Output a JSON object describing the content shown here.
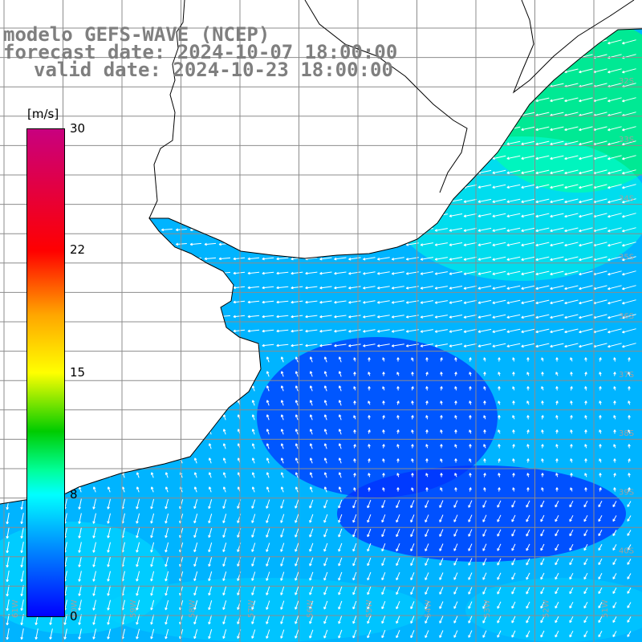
{
  "title": {
    "line1": "modelo GEFS-WAVE (NCEP)",
    "line2": "forecast date: 2024-10-07 18:00:00",
    "line3": "valid date: 2024-10-23 18:00:00"
  },
  "colorbar": {
    "unit": "[m/s]",
    "min": 0,
    "max": 30,
    "ticks": [
      "30",
      "22",
      "15",
      "8",
      "0"
    ]
  },
  "axes": {
    "lon_labels": [
      "61W",
      "60W",
      "59W",
      "58W",
      "57W",
      "56W",
      "55W",
      "54W",
      "53W",
      "52W",
      "51W"
    ],
    "lat_labels": [
      "32S",
      "33S",
      "34S",
      "35S",
      "36S",
      "37S",
      "38S",
      "39S",
      "40S"
    ]
  },
  "map": {
    "field": "wind speed with direction arrows",
    "grid": true,
    "land_color": "#ffffff",
    "coastline_color": "#000000"
  }
}
